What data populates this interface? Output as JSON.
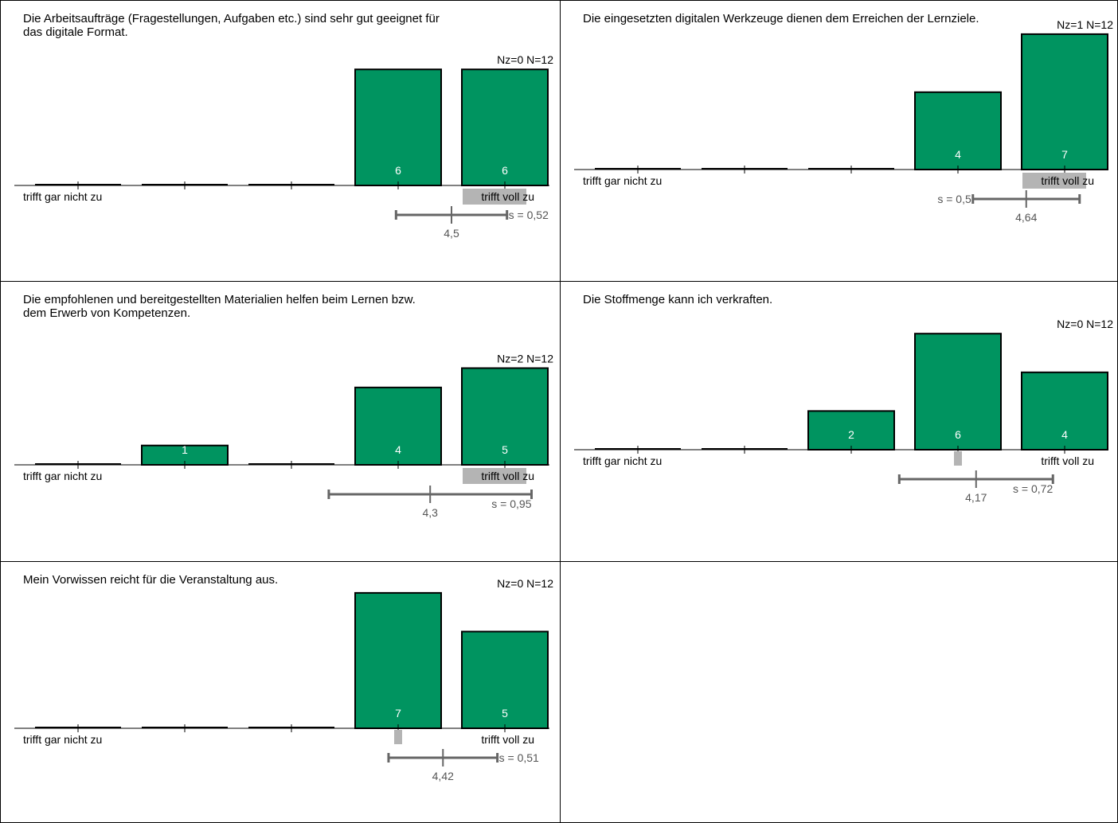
{
  "colors": {
    "bar": "#009460",
    "bar_stroke": "#000000",
    "value_text": "#ffffff",
    "error_bar": "#666666",
    "median_highlight": "#b4b4b4",
    "stat_text": "#555555"
  },
  "chart_data": [
    {
      "type": "bar",
      "title": "Die Arbeitsaufträge (Fragestellungen, Aufgaben etc.) sind sehr gut geeignet für\ndas digitale Format.",
      "categories": [
        1,
        2,
        3,
        4,
        5
      ],
      "values": [
        0,
        0,
        0,
        6,
        6
      ],
      "label_left": "trifft gar nicht zu",
      "label_right": "trifft voll zu",
      "nz": "Nz=0",
      "n": "N=12",
      "mean": 4.5,
      "mean_label": "4,5",
      "sd": 0.52,
      "sd_label": "s = 0,52",
      "median": 5,
      "sd_label_side": "right"
    },
    {
      "type": "bar",
      "title": "Die eingesetzten digitalen Werkzeuge dienen dem Erreichen der Lernziele.",
      "categories": [
        1,
        2,
        3,
        4,
        5
      ],
      "values": [
        0,
        0,
        0,
        4,
        7
      ],
      "label_left": "trifft gar nicht zu",
      "label_right": "trifft voll zu",
      "nz": "Nz=1",
      "n": "N=12",
      "mean": 4.64,
      "mean_label": "4,64",
      "sd": 0.5,
      "sd_label": "s = 0,5",
      "median": 5,
      "sd_label_side": "left"
    },
    {
      "type": "bar",
      "title": "Die empfohlenen und bereitgestellten Materialien helfen beim Lernen bzw.\ndem Erwerb von Kompetenzen.",
      "categories": [
        1,
        2,
        3,
        4,
        5
      ],
      "values": [
        0,
        1,
        0,
        4,
        5
      ],
      "label_left": "trifft gar nicht zu",
      "label_right": "trifft voll zu",
      "nz": "Nz=2",
      "n": "N=12",
      "mean": 4.3,
      "mean_label": "4,3",
      "sd": 0.95,
      "sd_label": "s = 0,95",
      "median": 5,
      "sd_label_side": "below"
    },
    {
      "type": "bar",
      "title": "Die Stoffmenge kann ich verkraften.",
      "categories": [
        1,
        2,
        3,
        4,
        5
      ],
      "values": [
        0,
        0,
        2,
        6,
        4
      ],
      "label_left": "trifft gar nicht zu",
      "label_right": "trifft voll zu",
      "nz": "Nz=0",
      "n": "N=12",
      "mean": 4.17,
      "mean_label": "4,17",
      "sd": 0.72,
      "sd_label": "s = 0,72",
      "median": 4,
      "sd_label_side": "below"
    },
    {
      "type": "bar",
      "title": "Mein Vorwissen reicht für die Veranstaltung aus.",
      "categories": [
        1,
        2,
        3,
        4,
        5
      ],
      "values": [
        0,
        0,
        0,
        7,
        5
      ],
      "label_left": "trifft gar nicht zu",
      "label_right": "trifft voll zu",
      "nz": "Nz=0",
      "n": "N=12",
      "mean": 4.42,
      "mean_label": "4,42",
      "sd": 0.51,
      "sd_label": "s = 0,51",
      "median": 4,
      "sd_label_side": "right"
    }
  ]
}
